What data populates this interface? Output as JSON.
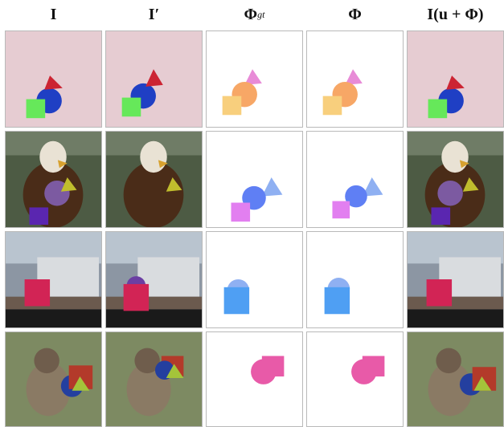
{
  "columns": [
    {
      "label_main": "I",
      "label_sub": ""
    },
    {
      "label_main": "I′",
      "label_sub": ""
    },
    {
      "label_main": "Φ",
      "label_sub": "gt"
    },
    {
      "label_main": "Φ",
      "label_sub": ""
    },
    {
      "label_main": "I(u + Φ)",
      "label_sub": ""
    }
  ],
  "colors": {
    "pink_bg": "#e6ccd2",
    "red_triangle": "#cc2433",
    "blue_circle": "#1f3fc4",
    "green_square": "#66e85a",
    "flow_orange": "#f7a766",
    "flow_magenta": "#e88bd7",
    "flow_yellow": "#f8cf7d",
    "flow_blue": "#5f7ff4",
    "flow_lightblue": "#8fb0f2",
    "flow_violet": "#e27ff0",
    "flow_sky": "#4f9ff3",
    "flow_hotpink": "#e85aa8"
  }
}
